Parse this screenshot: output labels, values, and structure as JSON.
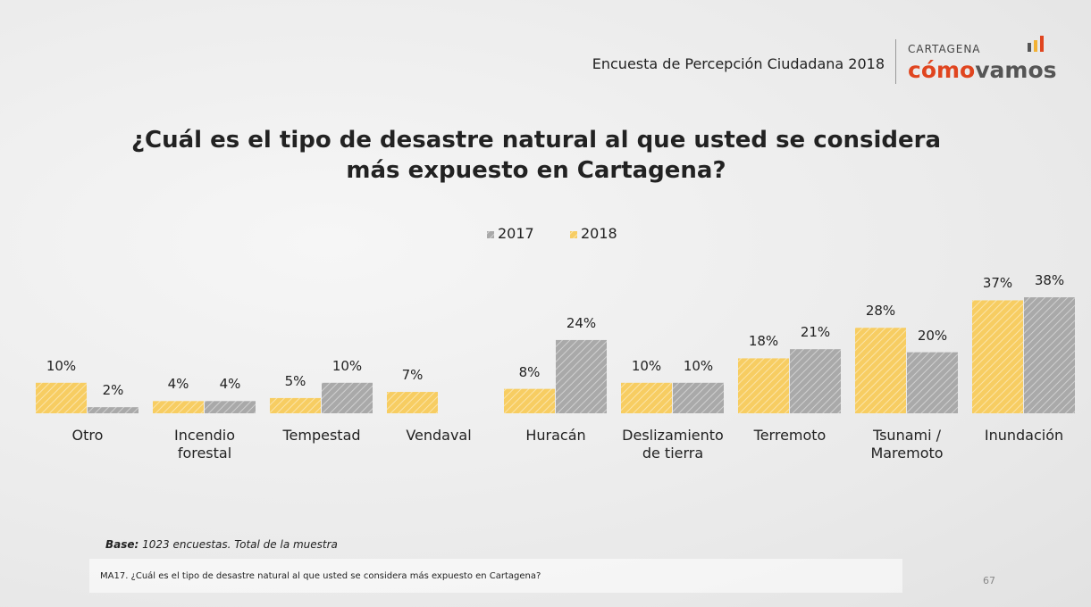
{
  "header": {
    "survey": "Encuesta de Percepción Ciudadana 2018",
    "logo_top": "CARTAGENA",
    "logo_a": "cómo",
    "logo_b": "vamos"
  },
  "chart_data": {
    "type": "bar",
    "title": "¿Cuál es el tipo de desastre natural al que usted se considera más expuesto en Cartagena?",
    "categories": [
      "Otro",
      "Incendio forestal",
      "Tempestad",
      "Vendaval",
      "Huracán",
      "Deslizamiento de tierra",
      "Terremoto",
      "Tsunami / Maremoto",
      "Inundación"
    ],
    "series": [
      {
        "name": "2017",
        "color": "#a9a9a9",
        "values": [
          2,
          4,
          10,
          null,
          24,
          10,
          21,
          20,
          38
        ],
        "value_labels": [
          "2%",
          "4%",
          "10%",
          null,
          "24%",
          "10%",
          "21%",
          "20%",
          "38%"
        ]
      },
      {
        "name": "2018",
        "color": "#f7cd62",
        "values": [
          10,
          4,
          5,
          7,
          8,
          10,
          18,
          28,
          37
        ],
        "value_labels": [
          "10%",
          "4%",
          "5%",
          "7%",
          "8%",
          "10%",
          "18%",
          "28%",
          "37%"
        ]
      }
    ]
  },
  "footer": {
    "base_label": "Base:",
    "base_text": "1023 encuestas. Total de la muestra",
    "question": "MA17. ¿Cuál es el tipo de desastre natural al que usted se considera más expuesto en Cartagena?",
    "page": "67"
  }
}
